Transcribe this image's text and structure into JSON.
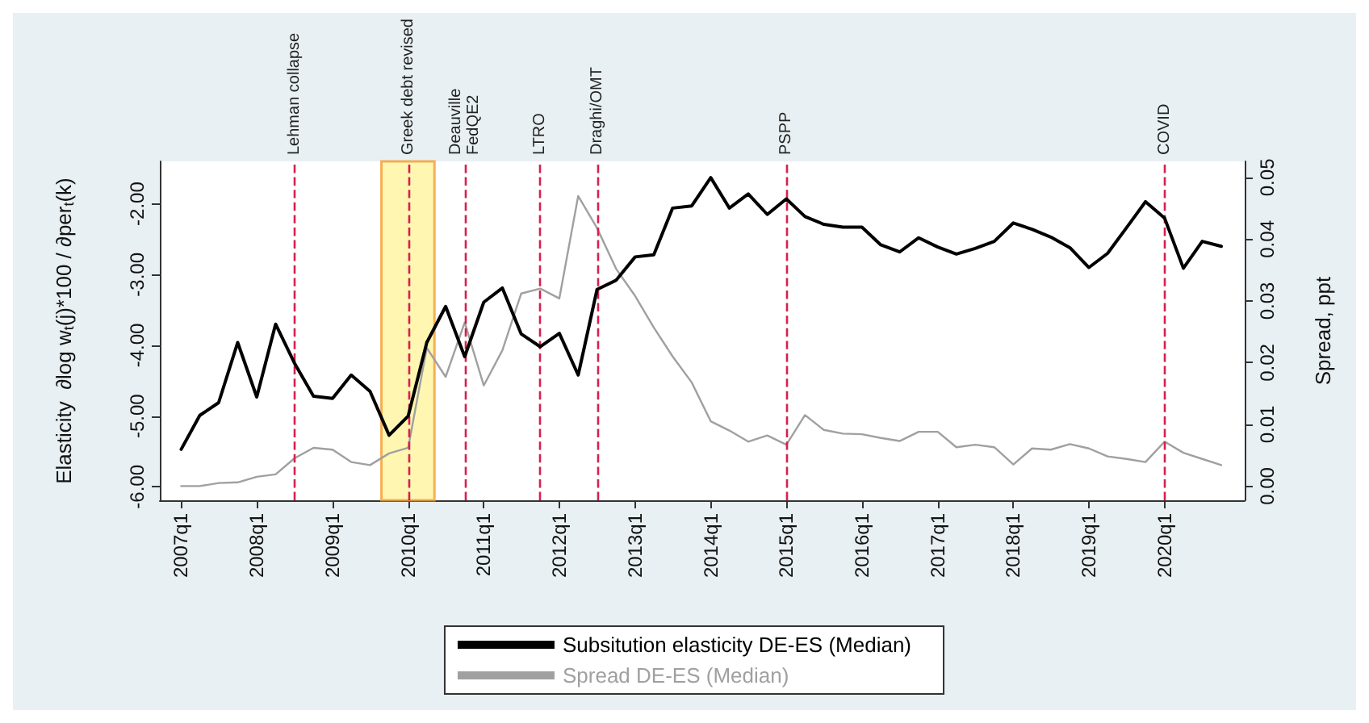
{
  "chart_data": {
    "type": "line",
    "ylabel": "Elasticity  ∂log w$_{t}$(j)*100 / ∂per$_{t}$(k)",
    "y2label": "Spread, ppt",
    "x": [
      "2007-01",
      "2007-04",
      "2007-07",
      "2007-10",
      "2008-01",
      "2008-04",
      "2008-07",
      "2008-10",
      "2009-01",
      "2009-04",
      "2009-07",
      "2009-10",
      "2010-01",
      "2010-04",
      "2010-07",
      "2010-10",
      "2011-01",
      "2011-04",
      "2011-07",
      "2011-10",
      "2012-01",
      "2012-04",
      "2012-07",
      "2012-10",
      "2013-01",
      "2013-04",
      "2013-07",
      "2013-10",
      "2014-01",
      "2014-04",
      "2014-07",
      "2014-10",
      "2015-01",
      "2015-04",
      "2015-07",
      "2015-10",
      "2016-01",
      "2016-04",
      "2016-07",
      "2016-10",
      "2017-01",
      "2017-04",
      "2017-07",
      "2017-10",
      "2018-01",
      "2018-04",
      "2018-07",
      "2018-10",
      "2019-01",
      "2019-04",
      "2019-07",
      "2019-10",
      "2020-01",
      "2020-04",
      "2020-07",
      "2020-10"
    ],
    "series": [
      {
        "name": "Subsitution elasticity DE-ES (Median)",
        "color": "#000000",
        "values": [
          -5.47,
          -4.99,
          -4.81,
          -3.96,
          -4.73,
          -3.7,
          -4.25,
          -4.72,
          -4.75,
          -4.42,
          -4.65,
          -5.27,
          -5.0,
          -3.96,
          -3.45,
          -4.16,
          -3.39,
          -3.19,
          -3.84,
          -4.02,
          -3.83,
          -4.42,
          -3.21,
          -3.08,
          -2.75,
          -2.72,
          -2.06,
          -2.03,
          -1.63,
          -2.06,
          -1.86,
          -2.15,
          -1.93,
          -2.18,
          -2.29,
          -2.33,
          -2.33,
          -2.58,
          -2.68,
          -2.48,
          -2.61,
          -2.71,
          -2.63,
          -2.53,
          -2.27,
          -2.36,
          -2.47,
          -2.62,
          -2.9,
          -2.7,
          -2.34,
          -1.97,
          -2.2,
          -2.91,
          -2.53,
          -2.6
        ]
      },
      {
        "name": "Spread DE-ES (Median)",
        "color": "#a0a0a0",
        "axis": "y2",
        "values": [
          0.0,
          0.0,
          0.0005,
          0.0006,
          0.0015,
          0.0019,
          0.0045,
          0.0062,
          0.0059,
          0.0039,
          0.0034,
          0.0053,
          0.0062,
          0.0224,
          0.0177,
          0.0265,
          0.0163,
          0.022,
          0.0312,
          0.032,
          0.0304,
          0.047,
          0.0418,
          0.0352,
          0.0308,
          0.0257,
          0.021,
          0.0168,
          0.0105,
          0.009,
          0.0072,
          0.0082,
          0.0067,
          0.0115,
          0.0091,
          0.0085,
          0.0084,
          0.0078,
          0.0073,
          0.0088,
          0.0088,
          0.0063,
          0.0067,
          0.0063,
          0.0035,
          0.0061,
          0.0059,
          0.0068,
          0.0061,
          0.0048,
          0.0044,
          0.0039,
          0.0072,
          0.0054,
          0.0044,
          0.0034
        ]
      }
    ],
    "xlim": [
      "2006-09-20",
      "2021-01-22"
    ],
    "xticks": [
      {
        "value": "2007-01",
        "label": "2007q1"
      },
      {
        "value": "2008-01",
        "label": "2008q1"
      },
      {
        "value": "2009-01",
        "label": "2009q1"
      },
      {
        "value": "2010-01",
        "label": "2010q1"
      },
      {
        "value": "2011-01",
        "label": "2011q1"
      },
      {
        "value": "2012-01",
        "label": "2012q1"
      },
      {
        "value": "2013-01",
        "label": "2013q1"
      },
      {
        "value": "2014-01",
        "label": "2014q1"
      },
      {
        "value": "2015-01",
        "label": "2015q1"
      },
      {
        "value": "2016-01",
        "label": "2016q1"
      },
      {
        "value": "2017-01",
        "label": "2017q1"
      },
      {
        "value": "2018-01",
        "label": "2018q1"
      },
      {
        "value": "2019-01",
        "label": "2019q1"
      },
      {
        "value": "2020-01",
        "label": "2020q1"
      }
    ],
    "ylim": [
      -6.19,
      -1.4
    ],
    "yticks": [
      {
        "value": -6,
        "label": "-6.00"
      },
      {
        "value": -5,
        "label": "-5.00"
      },
      {
        "value": -4,
        "label": "-4.00"
      },
      {
        "value": -3,
        "label": "-3.00"
      },
      {
        "value": -2,
        "label": "-2.00"
      }
    ],
    "y2lim": [
      -0.0023,
      0.0526
    ],
    "y2ticks": [
      {
        "value": 0,
        "label": "0.00"
      },
      {
        "value": 0.01,
        "label": "0.01"
      },
      {
        "value": 0.02,
        "label": "0.02"
      },
      {
        "value": 0.03,
        "label": "0.03"
      },
      {
        "value": 0.04,
        "label": "0.04"
      },
      {
        "value": 0.05,
        "label": "0.05"
      }
    ],
    "ref_lines": [
      {
        "axis": "x",
        "value": "2008-07",
        "label": "Lehman collapse",
        "color": "#d6204e",
        "line_style": "dashed"
      },
      {
        "axis": "x",
        "value": "2010-01",
        "label": "Greek debt revised",
        "color": "#d6204e",
        "line_style": "dashed"
      },
      {
        "axis": "x",
        "value": "2010-10",
        "label": "Deauville\nFedQE2",
        "color": "#d6204e",
        "line_style": "dashed"
      },
      {
        "axis": "x",
        "value": "2011-10",
        "label": "LTRO",
        "color": "#d6204e",
        "line_style": "dashed"
      },
      {
        "axis": "x",
        "value": "2012-07",
        "label": "Draghi/OMT",
        "color": "#d6204e",
        "line_style": "dashed"
      },
      {
        "axis": "x",
        "value": "2015-01",
        "label": "PSPP",
        "color": "#d6204e",
        "line_style": "dashed"
      },
      {
        "axis": "x",
        "value": "2020-01",
        "label": "COVID",
        "color": "#d6204e",
        "line_style": "dashed"
      }
    ],
    "bands": [
      {
        "axis": "x",
        "from": "2009-08-25",
        "to": "2010-05-08",
        "color": "#fff59d"
      }
    ],
    "legend": "bottom",
    "grid": false,
    "marker": "none",
    "line_style": "solid"
  }
}
